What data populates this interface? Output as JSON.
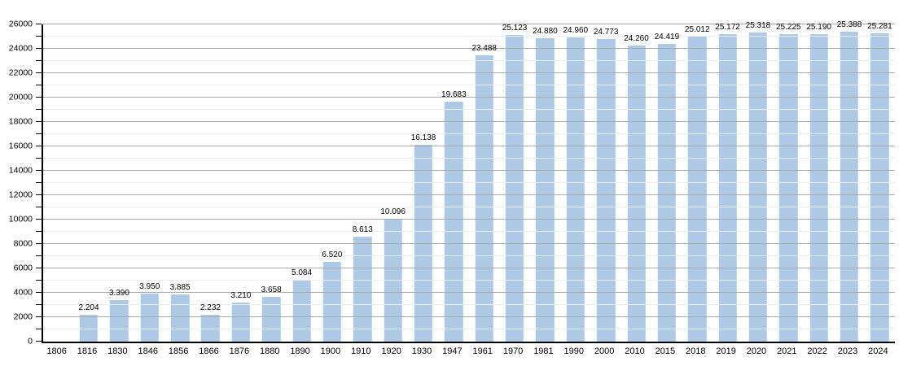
{
  "chart_data": {
    "type": "bar",
    "title": "",
    "xlabel": "",
    "ylabel": "",
    "categories": [
      "1806",
      "1816",
      "1830",
      "1846",
      "1856",
      "1866",
      "1876",
      "1880",
      "1890",
      "1900",
      "1910",
      "1920",
      "1930",
      "1947",
      "1961",
      "1970",
      "1981",
      "1990",
      "2000",
      "2010",
      "2015",
      "2018",
      "2019",
      "2020",
      "2021",
      "2022",
      "2023",
      "2024"
    ],
    "values": [
      null,
      2204,
      3390,
      3950,
      3885,
      2232,
      3210,
      3658,
      5084,
      6520,
      8613,
      10096,
      16138,
      19683,
      23488,
      25123,
      24880,
      24960,
      24773,
      24260,
      24419,
      25012,
      25172,
      25318,
      25225,
      25190,
      25388,
      25281
    ],
    "value_labels": [
      "",
      "2.204",
      "3.390",
      "3.950",
      "3.885",
      "2.232",
      "3.210",
      "3.658",
      "5.084",
      "6.520",
      "8.613",
      "10.096",
      "16.138",
      "19.683",
      "23.488",
      "25.123",
      "24.880",
      "24.960",
      "24.773",
      "24.260",
      "24.419",
      "25.012",
      "25.172",
      "25.318",
      "25.225",
      "25.190",
      "25.388",
      "25.281"
    ],
    "y_ticks": [
      "0",
      "2000",
      "4000",
      "6000",
      "8000",
      "10000",
      "12000",
      "14000",
      "16000",
      "18000",
      "20000",
      "22000",
      "24000",
      "26000"
    ],
    "y_tick_values": [
      0,
      2000,
      4000,
      6000,
      8000,
      10000,
      12000,
      14000,
      16000,
      18000,
      20000,
      22000,
      24000,
      26000
    ],
    "ylim": [
      0,
      26000
    ],
    "y_major_step": 2000,
    "y_minor_step": 1000,
    "grid": "on",
    "legend": "none",
    "colors": {
      "bar": "#adc9e5",
      "grid_major": "#a9a9a9",
      "grid_minor": "#ededed",
      "axis": "#000000",
      "text": "#000000",
      "background": "#ffffff"
    }
  }
}
